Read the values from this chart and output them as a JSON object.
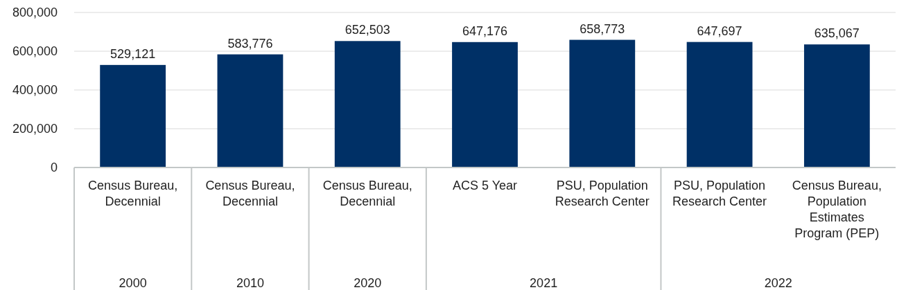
{
  "chart_data": {
    "type": "bar",
    "categories": [
      "Census Bureau, Decennial",
      "Census Bureau, Decennial",
      "Census Bureau, Decennial",
      "ACS 5 Year",
      "PSU, Population Research Center",
      "PSU, Population Research Center",
      "Census Bureau, Population Estimates Program (PEP)"
    ],
    "values": [
      529121,
      583776,
      652503,
      647176,
      658773,
      647697,
      635067
    ],
    "color": "#003066",
    "ylim": [
      0,
      800000
    ],
    "yticks": [
      {
        "value": 0,
        "label": "0"
      },
      {
        "value": 200000,
        "label": "200,000"
      },
      {
        "value": 400000,
        "label": "400,000"
      },
      {
        "value": 600000,
        "label": "600,000"
      },
      {
        "value": 800000,
        "label": "800,000"
      }
    ],
    "grid": "y",
    "value_labels": [
      "529,121",
      "583,776",
      "652,503",
      "647,176",
      "658,773",
      "647,697",
      "635,067"
    ],
    "annotations": [
      "2000",
      "2010",
      "2020",
      "2021",
      "2022"
    ]
  }
}
